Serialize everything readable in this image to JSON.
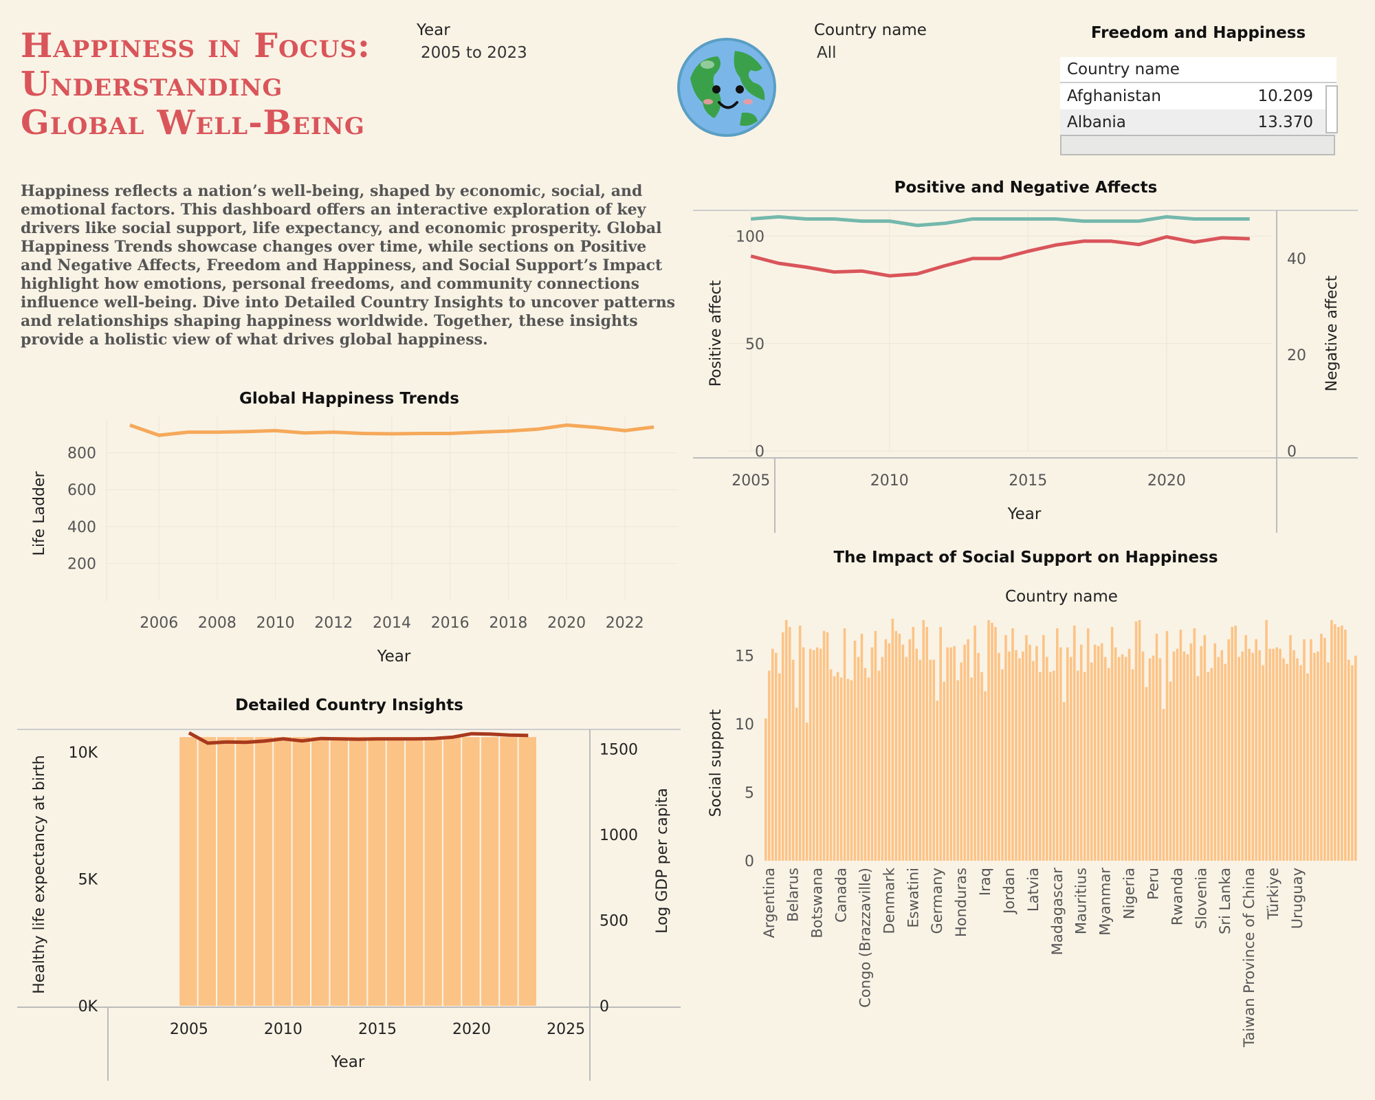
{
  "header": {
    "title_lines": [
      "Happiness in Focus:",
      "Understanding",
      "Global Well-Being"
    ],
    "intro": "Happiness reflects a nation’s well-being, shaped by economic, social, and emotional factors. This dashboard offers an interactive exploration of key drivers like social support, life expectancy, and economic prosperity. Global Happiness Trends showcase changes over time, while sections on Positive and Negative Affects, Freedom and Happiness, and Social Support’s Impact highlight how emotions, personal freedoms, and community connections influence well-being. Dive into Detailed Country Insights to uncover patterns and relationships shaping happiness worldwide. Together, these insights provide a holistic view of what drives global happiness."
  },
  "filters": {
    "year_label": "Year",
    "year_value": "2005 to 2023",
    "country_label": "Country name",
    "country_value": "All"
  },
  "freedom_table": {
    "title": "Freedom and Happiness",
    "header": "Country name",
    "rows": [
      {
        "country": "Afghanistan",
        "value": "10.209"
      },
      {
        "country": "Albania",
        "value": "13.370"
      }
    ]
  },
  "colors": {
    "title": "#d9555a",
    "orange": "#f5a95a",
    "bar": "#fcc386",
    "teal": "#74b8ac",
    "red": "#d9555a",
    "dark_red": "#a8391d",
    "background": "#f9f3e6"
  },
  "chart_data": [
    {
      "id": "global_trends",
      "type": "line",
      "title": "Global Happiness Trends",
      "xlabel": "Year",
      "ylabel": "Life Ladder",
      "x": [
        2005,
        2006,
        2007,
        2008,
        2009,
        2010,
        2011,
        2012,
        2013,
        2014,
        2015,
        2016,
        2017,
        2018,
        2019,
        2020,
        2021,
        2022,
        2023
      ],
      "values": [
        950,
        895,
        912,
        912,
        915,
        920,
        908,
        912,
        905,
        903,
        905,
        905,
        912,
        918,
        928,
        950,
        938,
        920,
        940
      ],
      "x_ticks": [
        2006,
        2008,
        2010,
        2012,
        2014,
        2016,
        2018,
        2020,
        2022
      ],
      "y_ticks": [
        200,
        400,
        600,
        800
      ],
      "ylim": [
        0,
        1000
      ],
      "xlim": [
        2004.2,
        2023.8
      ]
    },
    {
      "id": "affects",
      "type": "line",
      "title": "Positive and Negative Affects",
      "xlabel": "Year",
      "ylabel": "Positive affect",
      "y2label": "Negative affect",
      "x": [
        2005,
        2006,
        2007,
        2008,
        2009,
        2010,
        2011,
        2012,
        2013,
        2014,
        2015,
        2016,
        2017,
        2018,
        2019,
        2020,
        2021,
        2022,
        2023
      ],
      "series": [
        {
          "name": "Positive affect",
          "axis": "left",
          "values": [
            108,
            109,
            108,
            108,
            107,
            107,
            105,
            106,
            108,
            108,
            108,
            108,
            107,
            107,
            107,
            109,
            108,
            108,
            108
          ]
        },
        {
          "name": "Negative affect",
          "axis": "right",
          "values": [
            40.5,
            39.0,
            38.2,
            37.2,
            37.4,
            36.4,
            36.8,
            38.5,
            40.0,
            40.0,
            41.5,
            42.8,
            43.6,
            43.6,
            42.9,
            44.5,
            43.4,
            44.3,
            44.1
          ]
        }
      ],
      "x_ticks": [
        2005,
        2010,
        2015,
        2020
      ],
      "y_ticks": [
        0,
        50,
        100
      ],
      "y2_ticks": [
        0,
        20,
        40
      ],
      "ylim": [
        0,
        112
      ],
      "y2lim": [
        0,
        50
      ],
      "xlim": [
        2004.2,
        2023.8
      ]
    },
    {
      "id": "country_insights",
      "type": "bar",
      "title": "Detailed Country Insights",
      "xlabel": "Year",
      "ylabel": "Healthy life expectancy at birth",
      "y2label": "Log GDP per capita",
      "x": [
        2005,
        2006,
        2007,
        2008,
        2009,
        2010,
        2011,
        2012,
        2013,
        2014,
        2015,
        2016,
        2017,
        2018,
        2019,
        2020,
        2021,
        2022,
        2023
      ],
      "series": [
        {
          "name": "Healthy life expectancy at birth",
          "axis": "left",
          "type": "bar",
          "values": [
            10600,
            10600,
            10600,
            10600,
            10600,
            10600,
            10600,
            10600,
            10600,
            10600,
            10600,
            10600,
            10600,
            10600,
            10600,
            10600,
            10600,
            10600,
            10600
          ]
        },
        {
          "name": "Log GDP per capita",
          "axis": "right",
          "type": "line",
          "values": [
            1595,
            1535,
            1542,
            1540,
            1547,
            1560,
            1548,
            1562,
            1560,
            1558,
            1560,
            1560,
            1560,
            1562,
            1570,
            1590,
            1588,
            1582,
            1580
          ]
        }
      ],
      "x_ticks": [
        2005,
        2010,
        2015,
        2020,
        2025
      ],
      "y_ticks": [
        "0K",
        "5K",
        "10K"
      ],
      "y_tick_values": [
        0,
        5000,
        10000
      ],
      "y2_ticks": [
        0,
        500,
        1000,
        1500
      ],
      "ylim": [
        0,
        10900
      ],
      "y2lim": [
        0,
        1615
      ],
      "xlim": [
        2000.7,
        2026.2
      ]
    },
    {
      "id": "social_support",
      "type": "bar",
      "title": "The Impact of Social Support on Happiness",
      "header": "Country name",
      "ylabel": "Social support",
      "y_ticks": [
        0,
        5,
        10,
        15
      ],
      "ylim": [
        0,
        18.2
      ],
      "labeled_categories": [
        {
          "index": 1,
          "name": "Argentina"
        },
        {
          "index": 8,
          "name": "Belarus"
        },
        {
          "index": 15,
          "name": "Botswana"
        },
        {
          "index": 22,
          "name": "Canada"
        },
        {
          "index": 29,
          "name": "Congo (Brazzaville)"
        },
        {
          "index": 36,
          "name": "Denmark"
        },
        {
          "index": 43,
          "name": "Eswatini"
        },
        {
          "index": 50,
          "name": "Germany"
        },
        {
          "index": 57,
          "name": "Honduras"
        },
        {
          "index": 64,
          "name": "Iraq"
        },
        {
          "index": 71,
          "name": "Jordan"
        },
        {
          "index": 78,
          "name": "Latvia"
        },
        {
          "index": 85,
          "name": "Madagascar"
        },
        {
          "index": 92,
          "name": "Mauritius"
        },
        {
          "index": 99,
          "name": "Myanmar"
        },
        {
          "index": 106,
          "name": "Nigeria"
        },
        {
          "index": 113,
          "name": "Peru"
        },
        {
          "index": 120,
          "name": "Rwanda"
        },
        {
          "index": 127,
          "name": "Slovenia"
        },
        {
          "index": 134,
          "name": "Sri Lanka"
        },
        {
          "index": 141,
          "name": "Taiwan Province of China"
        },
        {
          "index": 148,
          "name": "Türkiye"
        },
        {
          "index": 155,
          "name": "Uruguay"
        }
      ],
      "values": [
        10.4,
        13.9,
        15.5,
        15.2,
        13.7,
        16.7,
        17.6,
        17.1,
        14.7,
        11.2,
        17.2,
        15.6,
        10.1,
        15.5,
        15.4,
        15.6,
        15.5,
        16.8,
        16.7,
        14.0,
        13.5,
        13.8,
        13.4,
        17.0,
        13.3,
        13.2,
        16.1,
        14.9,
        16.6,
        14.1,
        13.4,
        15.6,
        16.8,
        13.9,
        14.9,
        16.2,
        15.9,
        17.7,
        16.8,
        16.6,
        15.8,
        14.9,
        16.2,
        17.1,
        15.5,
        14.7,
        17.6,
        17.1,
        14.7,
        14.7,
        11.7,
        17.1,
        13.1,
        15.6,
        15.6,
        15.7,
        13.2,
        14.5,
        15.8,
        16.2,
        13.4,
        17.2,
        15.2,
        13.8,
        12.4,
        17.6,
        17.4,
        17.1,
        15.2,
        14.0,
        16.5,
        15.3,
        17.0,
        15.4,
        14.8,
        15.3,
        16.5,
        15.8,
        14.6,
        15.7,
        13.8,
        16.5,
        14.9,
        13.8,
        13.9,
        17.0,
        15.6,
        11.6,
        15.6,
        14.9,
        17.2,
        13.9,
        15.8,
        13.8,
        17.0,
        14.5,
        15.8,
        15.7,
        15.9,
        14.9,
        14.1,
        17.1,
        15.6,
        14.9,
        15.1,
        14.9,
        15.5,
        14.0,
        17.5,
        17.6,
        15.3,
        12.7,
        14.8,
        15.0,
        16.6,
        14.8,
        11.1,
        16.8,
        13.1,
        15.3,
        15.5,
        16.9,
        15.3,
        15.1,
        15.9,
        17.0,
        13.5,
        15.7,
        16.5,
        13.8,
        14.1,
        15.9,
        14.9,
        15.4,
        14.4,
        16.2,
        17.1,
        17.2,
        14.9,
        15.3,
        16.5,
        15.5,
        15.2,
        16.2,
        15.4,
        14.3,
        17.6,
        15.5,
        15.5,
        15.6,
        15.5,
        14.8,
        14.4,
        16.5,
        15.4,
        14.8,
        14.3,
        16.2,
        13.7,
        16.2,
        15.2,
        15.3,
        16.6,
        16.3,
        14.5,
        17.6,
        17.3,
        17.1,
        17.2,
        16.9,
        14.7,
        14.3,
        15.0
      ],
      "xlim": [
        0,
        164
      ]
    }
  ]
}
